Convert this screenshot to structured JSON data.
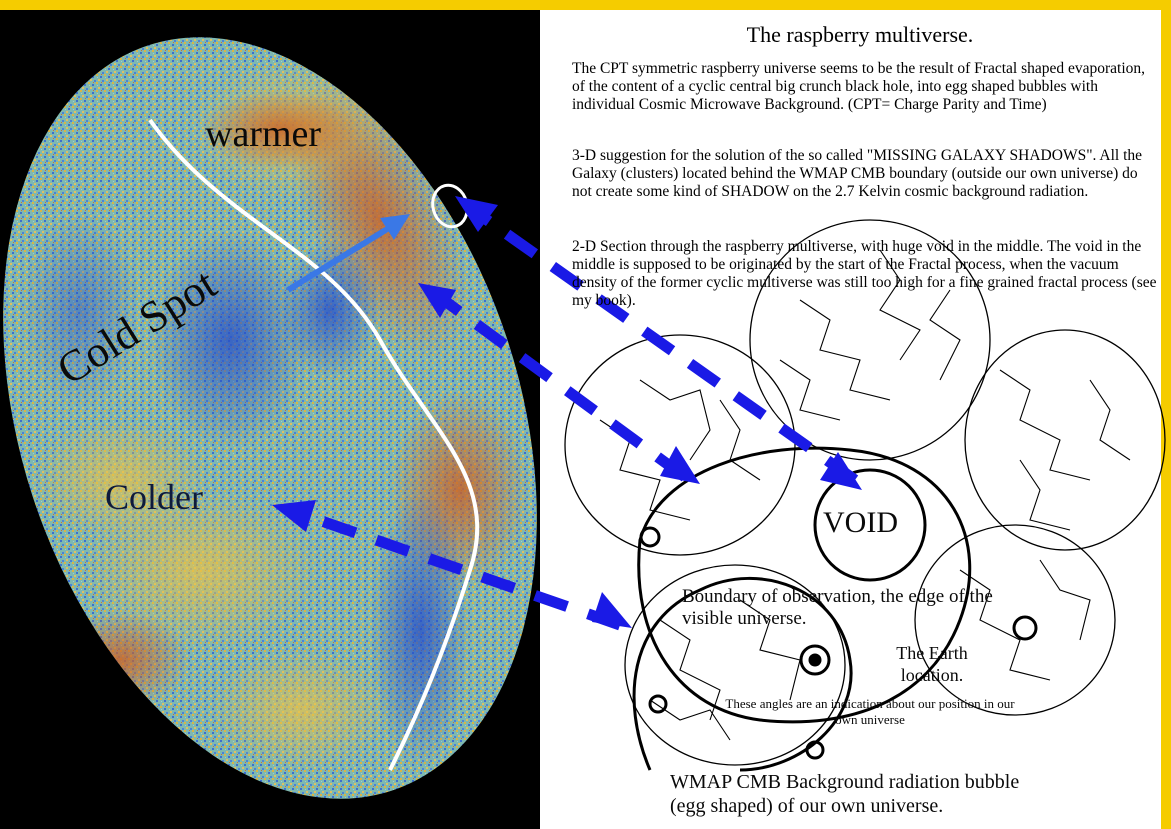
{
  "title": "The raspberry multiverse.",
  "paragraphs": [
    "The CPT symmetric raspberry universe seems to be the result of Fractal shaped evaporation, of the content of a cyclic central big crunch black hole, into egg shaped bubbles with individual Cosmic Microwave Background. (CPT= Charge Parity and Time)",
    "3-D suggestion for the solution of the so called \"MISSING GALAXY SHADOWS\".        All the Galaxy (clusters) located behind the WMAP CMB boundary (outside our own universe) do not create some kind of SHADOW on the 2.7 Kelvin cosmic background radiation.",
    "2-D Section through the raspberry multiverse, with huge void in the middle. The void in the middle is supposed to be originated by the start of the Fractal process, when the vacuum density of the former cyclic multiverse was still too high for a fine grained fractal process (see my book)."
  ],
  "egg_labels": {
    "warmer": "warmer",
    "cold_spot": "Cold Spot",
    "colder": "Colder"
  },
  "diagram_labels": {
    "void": "VOID",
    "boundary": "Boundary of observation, the edge of the visible universe.",
    "earth": "The Earth location.",
    "angles": "These angles are an indication about our position in our own universe",
    "wmap": "WMAP CMB Background radiation bubble (egg shaped) of our own universe."
  },
  "colors": {
    "frame": "#f5cc00",
    "arrow": "#1a1ae6",
    "cold_arrow": "#3a78e6",
    "cmb_warm": "#c8642a",
    "cmb_cold": "#2850c8"
  }
}
